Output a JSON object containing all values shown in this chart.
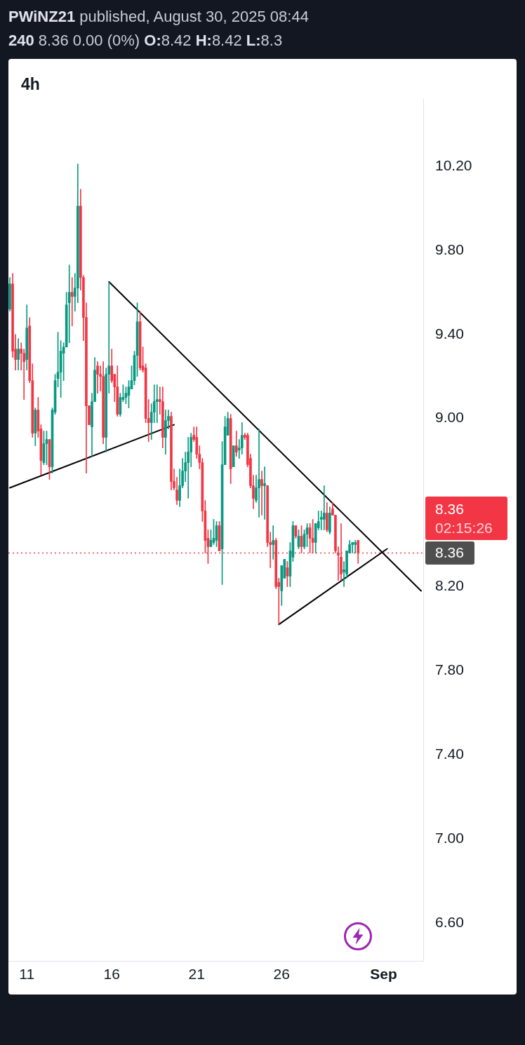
{
  "chart_data": {
    "type": "candlestick",
    "title": "4h",
    "subtitle": "PWiNZ21 published, August 30, 2025 08:44",
    "annotations": [
      "240 8.36 0.00 (0%) O:8.42 H:8.42 L:8.3",
      "8.36",
      "02:15:26"
    ],
    "x": [
      "2025-08-10T00:00",
      "2025-08-10T04:00",
      "2025-08-10T08:00",
      "2025-08-10T12:00",
      "2025-08-10T16:00",
      "2025-08-10T20:00",
      "2025-08-11T00:00",
      "2025-08-11T04:00",
      "2025-08-11T08:00",
      "2025-08-11T12:00",
      "2025-08-11T16:00",
      "2025-08-11T20:00",
      "2025-08-12T00:00",
      "2025-08-12T04:00",
      "2025-08-12T08:00",
      "2025-08-12T12:00",
      "2025-08-12T16:00",
      "2025-08-12T20:00",
      "2025-08-13T00:00",
      "2025-08-13T04:00",
      "2025-08-13T08:00",
      "2025-08-13T12:00",
      "2025-08-13T16:00",
      "2025-08-13T20:00",
      "2025-08-14T00:00",
      "2025-08-14T04:00",
      "2025-08-14T08:00",
      "2025-08-14T12:00",
      "2025-08-14T16:00",
      "2025-08-14T20:00",
      "2025-08-15T00:00",
      "2025-08-15T04:00",
      "2025-08-15T08:00",
      "2025-08-15T12:00",
      "2025-08-15T16:00",
      "2025-08-15T20:00",
      "2025-08-16T00:00",
      "2025-08-16T04:00",
      "2025-08-16T08:00",
      "2025-08-16T12:00",
      "2025-08-16T16:00",
      "2025-08-16T20:00",
      "2025-08-17T00:00",
      "2025-08-17T04:00",
      "2025-08-17T08:00",
      "2025-08-17T12:00",
      "2025-08-17T16:00",
      "2025-08-17T20:00",
      "2025-08-18T00:00",
      "2025-08-18T04:00",
      "2025-08-18T08:00",
      "2025-08-18T12:00",
      "2025-08-18T16:00",
      "2025-08-18T20:00",
      "2025-08-19T00:00",
      "2025-08-19T04:00",
      "2025-08-19T08:00",
      "2025-08-19T12:00",
      "2025-08-19T16:00",
      "2025-08-19T20:00",
      "2025-08-20T00:00",
      "2025-08-20T04:00",
      "2025-08-20T08:00",
      "2025-08-20T12:00",
      "2025-08-20T16:00",
      "2025-08-20T20:00",
      "2025-08-21T00:00",
      "2025-08-21T04:00",
      "2025-08-21T08:00",
      "2025-08-21T12:00",
      "2025-08-21T16:00",
      "2025-08-21T20:00",
      "2025-08-22T00:00",
      "2025-08-22T04:00",
      "2025-08-22T08:00",
      "2025-08-22T12:00",
      "2025-08-22T16:00",
      "2025-08-22T20:00",
      "2025-08-23T00:00",
      "2025-08-23T04:00",
      "2025-08-23T08:00",
      "2025-08-23T12:00",
      "2025-08-23T16:00",
      "2025-08-23T20:00",
      "2025-08-24T00:00",
      "2025-08-24T04:00",
      "2025-08-24T08:00",
      "2025-08-24T12:00",
      "2025-08-24T16:00",
      "2025-08-24T20:00",
      "2025-08-25T00:00",
      "2025-08-25T04:00",
      "2025-08-25T08:00",
      "2025-08-25T12:00",
      "2025-08-25T16:00",
      "2025-08-25T20:00",
      "2025-08-26T00:00",
      "2025-08-26T04:00",
      "2025-08-26T08:00",
      "2025-08-26T12:00",
      "2025-08-26T16:00",
      "2025-08-26T20:00",
      "2025-08-27T00:00",
      "2025-08-27T04:00",
      "2025-08-27T08:00",
      "2025-08-27T12:00",
      "2025-08-27T16:00",
      "2025-08-27T20:00",
      "2025-08-28T00:00",
      "2025-08-28T04:00",
      "2025-08-28T08:00",
      "2025-08-28T12:00",
      "2025-08-28T16:00",
      "2025-08-28T20:00",
      "2025-08-29T00:00",
      "2025-08-29T04:00",
      "2025-08-29T08:00",
      "2025-08-29T12:00",
      "2025-08-29T16:00",
      "2025-08-29T20:00",
      "2025-08-30T00:00",
      "2025-08-30T04:00",
      "2025-08-30T08:00",
      "2025-08-30T12:00"
    ],
    "ohlc": [
      [
        9.52,
        9.67,
        9.51,
        9.64
      ],
      [
        9.64,
        9.69,
        9.29,
        9.32
      ],
      [
        9.33,
        9.4,
        9.23,
        9.28
      ],
      [
        9.28,
        9.38,
        9.23,
        9.33
      ],
      [
        9.33,
        9.36,
        9.23,
        9.31
      ],
      [
        9.31,
        9.33,
        9.09,
        9.27
      ],
      [
        9.28,
        9.54,
        9.23,
        9.43
      ],
      [
        9.44,
        9.48,
        9.17,
        9.18
      ],
      [
        9.18,
        9.26,
        8.91,
        8.93
      ],
      [
        8.93,
        9.05,
        8.87,
        9.04
      ],
      [
        9.04,
        9.1,
        8.91,
        8.94
      ],
      [
        8.95,
        8.97,
        8.73,
        8.8
      ],
      [
        8.79,
        8.94,
        8.78,
        8.88
      ],
      [
        8.88,
        8.94,
        8.78,
        8.9
      ],
      [
        8.9,
        8.9,
        8.71,
        8.77
      ],
      [
        8.77,
        9.05,
        8.74,
        9.04
      ],
      [
        9.03,
        9.21,
        9.02,
        9.18
      ],
      [
        9.19,
        9.41,
        9.15,
        9.22
      ],
      [
        9.22,
        9.37,
        9.1,
        9.32
      ],
      [
        9.31,
        9.36,
        9.18,
        9.34
      ],
      [
        9.34,
        9.6,
        9.34,
        9.54
      ],
      [
        9.55,
        9.73,
        9.36,
        9.6
      ],
      [
        9.6,
        9.67,
        9.44,
        9.58
      ],
      [
        9.58,
        9.69,
        9.51,
        9.62
      ],
      [
        9.62,
        10.21,
        9.55,
        10.01
      ],
      [
        10.01,
        10.09,
        9.61,
        9.67
      ],
      [
        9.67,
        9.68,
        9.37,
        9.48
      ],
      [
        9.48,
        9.55,
        8.74,
        9.06
      ],
      [
        9.06,
        9.06,
        8.97,
        8.97
      ],
      [
        8.96,
        9.12,
        8.82,
        9.08
      ],
      [
        9.08,
        9.29,
        9.08,
        9.23
      ],
      [
        9.25,
        9.27,
        9.12,
        9.21
      ],
      [
        9.21,
        9.25,
        9.13,
        9.2
      ],
      [
        9.2,
        9.27,
        8.88,
        8.91
      ],
      [
        8.91,
        9.24,
        8.84,
        9.21
      ],
      [
        9.21,
        9.65,
        9.12,
        9.25
      ],
      [
        9.25,
        9.33,
        9.17,
        9.18
      ],
      [
        9.21,
        9.21,
        9.08,
        9.15
      ],
      [
        9.15,
        9.25,
        9.01,
        9.02
      ],
      [
        9.02,
        9.12,
        9.01,
        9.1
      ],
      [
        9.09,
        9.16,
        9.08,
        9.1
      ],
      [
        9.1,
        9.15,
        9.07,
        9.12
      ],
      [
        9.11,
        9.18,
        9.05,
        9.15
      ],
      [
        9.14,
        9.25,
        9.14,
        9.18
      ],
      [
        9.18,
        9.32,
        9.16,
        9.3
      ],
      [
        9.3,
        9.55,
        9.2,
        9.46
      ],
      [
        9.46,
        9.51,
        9.23,
        9.24
      ],
      [
        9.25,
        9.34,
        9.22,
        9.23
      ],
      [
        9.24,
        9.26,
        8.98,
        9
      ],
      [
        9,
        9.09,
        8.89,
        8.98
      ],
      [
        8.98,
        9.07,
        8.9,
        9.03
      ],
      [
        9.03,
        9.16,
        8.98,
        9.08
      ],
      [
        9.08,
        9.16,
        8.98,
        9.09
      ],
      [
        9.09,
        9.15,
        9.02,
        9.08
      ],
      [
        9.08,
        9.15,
        8.86,
        8.91
      ],
      [
        8.91,
        9.04,
        8.83,
        8.99
      ],
      [
        8.99,
        9.04,
        8.95,
        9.01
      ],
      [
        9.01,
        9.03,
        8.66,
        8.7
      ],
      [
        8.7,
        8.76,
        8.66,
        8.67
      ],
      [
        8.66,
        8.72,
        8.59,
        8.61
      ],
      [
        8.61,
        8.76,
        8.58,
        8.68
      ],
      [
        8.68,
        8.81,
        8.67,
        8.75
      ],
      [
        8.75,
        8.84,
        8.7,
        8.79
      ],
      [
        8.79,
        8.91,
        8.62,
        8.84
      ],
      [
        8.84,
        8.93,
        8.77,
        8.91
      ],
      [
        8.92,
        8.96,
        8.89,
        8.9
      ],
      [
        8.91,
        8.96,
        8.81,
        8.83
      ],
      [
        8.83,
        8.87,
        8.76,
        8.79
      ],
      [
        8.79,
        8.81,
        8.51,
        8.56
      ],
      [
        8.56,
        8.61,
        8.36,
        8.42
      ],
      [
        8.43,
        8.47,
        8.31,
        8.39
      ],
      [
        8.39,
        8.47,
        8.39,
        8.42
      ],
      [
        8.41,
        8.52,
        8.4,
        8.43
      ],
      [
        8.42,
        8.51,
        8.39,
        8.49
      ],
      [
        8.49,
        8.51,
        8.37,
        8.37
      ],
      [
        8.38,
        8.89,
        8.21,
        8.78
      ],
      [
        8.78,
        9.01,
        8.78,
        8.96
      ],
      [
        8.92,
        9.03,
        8.92,
        9
      ],
      [
        9,
        9.02,
        8.69,
        8.76
      ],
      [
        8.77,
        8.87,
        8.77,
        8.87
      ],
      [
        8.87,
        8.94,
        8.82,
        8.84
      ],
      [
        8.85,
        8.9,
        8.81,
        8.86
      ],
      [
        8.86,
        8.98,
        8.83,
        8.92
      ],
      [
        8.92,
        8.93,
        8.9,
        8.91
      ],
      [
        8.92,
        8.93,
        8.77,
        8.78
      ],
      [
        8.81,
        8.83,
        8.67,
        8.68
      ],
      [
        8.68,
        8.73,
        8.57,
        8.62
      ],
      [
        8.61,
        8.73,
        8.6,
        8.67
      ],
      [
        8.67,
        8.95,
        8.53,
        8.71
      ],
      [
        8.71,
        8.75,
        8.54,
        8.68
      ],
      [
        8.68,
        8.77,
        8.52,
        8.69
      ],
      [
        8.68,
        8.68,
        8.39,
        8.41
      ],
      [
        8.41,
        8.46,
        8.29,
        8.4
      ],
      [
        8.4,
        8.49,
        8.33,
        8.42
      ],
      [
        8.42,
        8.43,
        8.19,
        8.2
      ],
      [
        8.22,
        8.24,
        8.02,
        8.2
      ],
      [
        8.18,
        8.3,
        8.11,
        8.3
      ],
      [
        8.24,
        8.33,
        8.24,
        8.33
      ],
      [
        8.29,
        8.32,
        8.2,
        8.25
      ],
      [
        8.25,
        8.41,
        8.2,
        8.37
      ],
      [
        8.34,
        8.51,
        8.32,
        8.49
      ],
      [
        8.49,
        8.49,
        8.43,
        8.44
      ],
      [
        8.39,
        8.47,
        8.38,
        8.44
      ],
      [
        8.44,
        8.49,
        8.36,
        8.39
      ],
      [
        8.39,
        8.47,
        8.38,
        8.45
      ],
      [
        8.45,
        8.5,
        8.39,
        8.48
      ],
      [
        8.48,
        8.5,
        8.36,
        8.43
      ],
      [
        8.43,
        8.52,
        8.36,
        8.41
      ],
      [
        8.41,
        8.5,
        8.36,
        8.5
      ],
      [
        8.48,
        8.56,
        8.47,
        8.51
      ],
      [
        8.52,
        8.56,
        8.47,
        8.53
      ],
      [
        8.52,
        8.68,
        8.47,
        8.55
      ],
      [
        8.55,
        8.6,
        8.46,
        8.47
      ],
      [
        8.46,
        8.58,
        8.45,
        8.55
      ],
      [
        8.57,
        8.6,
        8.54,
        8.54
      ],
      [
        8.54,
        8.54,
        8.36,
        8.37
      ],
      [
        8.36,
        8.39,
        8.23,
        8.35
      ],
      [
        8.34,
        8.5,
        8.23,
        8.26
      ],
      [
        8.27,
        8.32,
        8.2,
        8.28
      ],
      [
        8.26,
        8.37,
        8.24,
        8.37
      ],
      [
        8.36,
        8.42,
        8.36,
        8.4
      ],
      [
        8.4,
        8.41,
        8.36,
        8.41
      ],
      [
        8.4,
        8.42,
        8.36,
        8.41
      ],
      [
        8.42,
        8.42,
        8.31,
        8.36
      ]
    ],
    "colors": [
      "#089981",
      "#f23645",
      "#f23645",
      "#089981",
      "#f23645",
      "#f23645",
      "#089981",
      "#f23645",
      "#f23645",
      "#089981",
      "#f23645",
      "#f23645",
      "#089981",
      "#089981",
      "#f23645",
      "#089981",
      "#089981",
      "#089981",
      "#089981",
      "#089981",
      "#089981",
      "#089981",
      "#f23645",
      "#089981",
      "#089981",
      "#f23645",
      "#f23645",
      "#f23645",
      "#f23645",
      "#089981",
      "#089981",
      "#f23645",
      "#f23645",
      "#f23645",
      "#089981",
      "#089981",
      "#f23645",
      "#f23645",
      "#f23645",
      "#089981",
      "#089981",
      "#089981",
      "#089981",
      "#089981",
      "#089981",
      "#089981",
      "#f23645",
      "#f23645",
      "#f23645",
      "#f23645",
      "#089981",
      "#089981",
      "#089981",
      "#f23645",
      "#f23645",
      "#089981",
      "#089981",
      "#f23645",
      "#f23645",
      "#f23645",
      "#089981",
      "#089981",
      "#089981",
      "#089981",
      "#089981",
      "#f23645",
      "#f23645",
      "#f23645",
      "#f23645",
      "#f23645",
      "#f23645",
      "#089981",
      "#089981",
      "#089981",
      "#f23645",
      "#089981",
      "#089981",
      "#089981",
      "#f23645",
      "#089981",
      "#f23645",
      "#089981",
      "#089981",
      "#f23645",
      "#f23645",
      "#f23645",
      "#f23645",
      "#089981",
      "#089981",
      "#f23645",
      "#089981",
      "#f23645",
      "#f23645",
      "#089981",
      "#f23645",
      "#f23645",
      "#089981",
      "#089981",
      "#f23645",
      "#089981",
      "#089981",
      "#f23645",
      "#089981",
      "#f23645",
      "#089981",
      "#089981",
      "#f23645",
      "#f23645",
      "#089981",
      "#089981",
      "#089981",
      "#089981",
      "#f23645",
      "#089981",
      "#f23645",
      "#f23645",
      "#f23645",
      "#f23645",
      "#089981",
      "#089981",
      "#089981",
      "#089981",
      "#089981",
      "#f23645"
    ],
    "series": [
      {
        "type": "line",
        "color": "#000000",
        "x": [
          "2025-08-15T20:00",
          "2025-09-03T05:00"
        ],
        "values": [
          9.65,
          8.18
        ]
      },
      {
        "type": "line",
        "color": "#000000",
        "x": [
          "2025-08-25T20:00",
          "2025-09-01T05:00"
        ],
        "values": [
          8.02,
          8.38
        ]
      },
      {
        "type": "line",
        "color": "#000000",
        "x": [
          "2025-08-10T00:00",
          "2025-08-19T16:00"
        ],
        "values": [
          8.67,
          8.97
        ]
      }
    ],
    "ref_lines": [
      {
        "axis": "y",
        "value": 8.36,
        "label": "8.36",
        "color": "#f23645",
        "line_style": "dotted"
      }
    ],
    "xlim": [
      "2025-08-09T22:00",
      "2025-09-03T08:00"
    ],
    "xticks": [
      {
        "value": "2025-08-11",
        "label": "11"
      },
      {
        "value": "2025-08-16",
        "label": "16"
      },
      {
        "value": "2025-08-21",
        "label": "21"
      },
      {
        "value": "2025-08-26",
        "label": "26"
      },
      {
        "value": "2025-09-01",
        "label": "Sep"
      }
    ],
    "ylim": [
      6.42,
      10.52
    ],
    "yticks": [
      {
        "value": 6.6,
        "label": "6.60"
      },
      {
        "value": 7,
        "label": "7.00"
      },
      {
        "value": 7.4,
        "label": "7.40"
      },
      {
        "value": 7.8,
        "label": "7.80"
      },
      {
        "value": 8.2,
        "label": "8.20"
      },
      {
        "value": 9,
        "label": "9.00"
      },
      {
        "value": 9.4,
        "label": "9.40"
      },
      {
        "value": 9.8,
        "label": "9.80"
      },
      {
        "value": 10.2,
        "label": "10.20"
      }
    ]
  }
}
